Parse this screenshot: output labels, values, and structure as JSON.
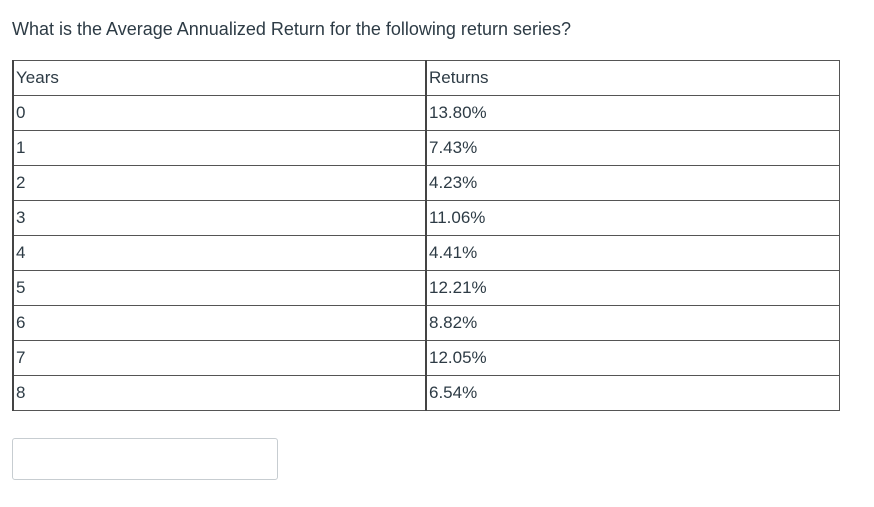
{
  "question": {
    "text": "What is the Average Annualized Return for the following return series?"
  },
  "table": {
    "headers": {
      "years": "Years",
      "returns": "Returns"
    },
    "rows": [
      {
        "year": "0",
        "return": "13.80%"
      },
      {
        "year": "1",
        "return": "7.43%"
      },
      {
        "year": "2",
        "return": "4.23%"
      },
      {
        "year": "3",
        "return": "11.06%"
      },
      {
        "year": "4",
        "return": "4.41%"
      },
      {
        "year": "5",
        "return": "12.21%"
      },
      {
        "year": "6",
        "return": "8.82%"
      },
      {
        "year": "7",
        "return": "12.05%"
      },
      {
        "year": "8",
        "return": "6.54%"
      }
    ]
  },
  "answer": {
    "value": "",
    "placeholder": ""
  }
}
